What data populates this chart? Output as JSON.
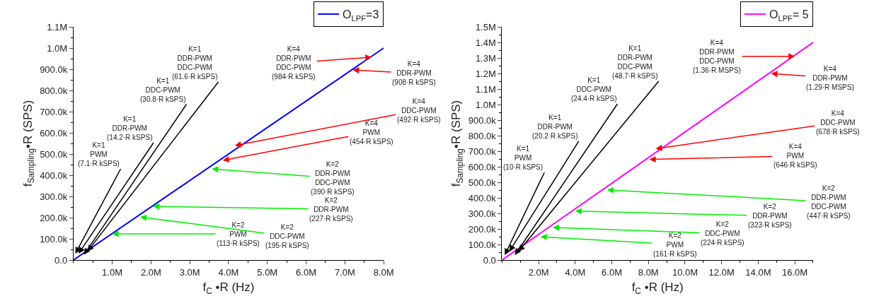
{
  "chart_data": [
    {
      "type": "line",
      "xlabel": "f$_{C}$ •R (Hz)",
      "ylabel": "f$_{Sampling}$•R (SPS)",
      "legend": "top right",
      "marker": "none",
      "line_style": "solid",
      "xlim": [
        0,
        8000000
      ],
      "xticks": [
        {
          "value": 1000000,
          "label": "1.0M"
        },
        {
          "value": 2000000,
          "label": "2.0M"
        },
        {
          "value": 3000000,
          "label": "3.0M"
        },
        {
          "value": 4000000,
          "label": "4.0M"
        },
        {
          "value": 5000000,
          "label": "5.0M"
        },
        {
          "value": 6000000,
          "label": "6.0M"
        },
        {
          "value": 7000000,
          "label": "7.0M"
        },
        {
          "value": 8000000,
          "label": "8.0M"
        }
      ],
      "ylim": [
        0,
        1100000
      ],
      "yticks": [
        {
          "value": 0,
          "label": "0.0"
        },
        {
          "value": 100000,
          "label": "100.0k"
        },
        {
          "value": 200000,
          "label": "200.0k"
        },
        {
          "value": 300000,
          "label": "300.0k"
        },
        {
          "value": 400000,
          "label": "400.0k"
        },
        {
          "value": 500000,
          "label": "500.0k"
        },
        {
          "value": 600000,
          "label": "600.0k"
        },
        {
          "value": 700000,
          "label": "700.0k"
        },
        {
          "value": 800000,
          "label": "800.0k"
        },
        {
          "value": 900000,
          "label": "900.0k"
        },
        {
          "value": 1000000,
          "label": "1.0M"
        },
        {
          "value": 1100000,
          "label": "1.1M"
        }
      ],
      "series": [
        {
          "name": "O$_{LPF}$=3",
          "color": "#0000ff",
          "x": [
            0,
            8000000
          ],
          "values": [
            0,
            1000000
          ]
        }
      ],
      "annotations": [
        {
          "text": "K=1\nPWM\n(7.1·R kSPS)",
          "x": 50000,
          "y": 30000
        },
        {
          "text": "K=1\nDDR-PWM\n(14.2·R kSPS)",
          "x": 130000,
          "y": 30000
        },
        {
          "text": "K=1\nDDC-PWM\n(30.8·R kSPS)",
          "x": 270000,
          "y": 25000
        },
        {
          "text": "K=1\nDDR-PWM\nDDC-PWM\n(61.6·R kSPS)",
          "x": 360000,
          "y": 40000
        },
        {
          "text": "K=2\nPWM\n(113·R kSPS)",
          "x": 1000000,
          "y": 123000
        },
        {
          "text": "K=2\nDDC-PWM\n(195·R kSPS)",
          "x": 1720000,
          "y": 203000
        },
        {
          "text": "K=2\nDDR-PWM\n(227·R kSPS)",
          "x": 2050000,
          "y": 253000
        },
        {
          "text": "K=2\nDDR-PWM\nDDC-PWM\n(390·R kSPS)",
          "x": 3570000,
          "y": 430000
        },
        {
          "text": "K=4\nPWM\n(454·R kSPS)",
          "x": 3850000,
          "y": 470000
        },
        {
          "text": "K=4\nDDC-PWM\n(492·R kSPS)",
          "x": 4160000,
          "y": 540000
        },
        {
          "text": "K=4\nDDR-PWM\n(908·R kSPS)",
          "x": 7200000,
          "y": 897000
        },
        {
          "text": "K=4\nDDR-PWM\nDDC-PWM\n(984·R kSPS)",
          "x": 7690000,
          "y": 957000
        }
      ]
    },
    {
      "type": "line",
      "xlabel": "f$_{C}$ •R (Hz)",
      "ylabel": "f$_{Sampling}$•R (SPS)",
      "legend": "top right",
      "marker": "none",
      "line_style": "solid",
      "xlim": [
        0,
        17000000
      ],
      "xticks": [
        {
          "value": 2000000,
          "label": "2.0M"
        },
        {
          "value": 4000000,
          "label": "4.0M"
        },
        {
          "value": 6000000,
          "label": "6.0M"
        },
        {
          "value": 8000000,
          "label": "8.0M"
        },
        {
          "value": 10000000,
          "label": "10.0M"
        },
        {
          "value": 12000000,
          "label": "12.0M"
        },
        {
          "value": 14000000,
          "label": "14.0M"
        },
        {
          "value": 16000000,
          "label": "16.0M"
        }
      ],
      "ylim": [
        0,
        1500000
      ],
      "yticks": [
        {
          "value": 0,
          "label": "0.0"
        },
        {
          "value": 100000,
          "label": "100.0k"
        },
        {
          "value": 200000,
          "label": "200.0k"
        },
        {
          "value": 300000,
          "label": "300.0k"
        },
        {
          "value": 400000,
          "label": "400.0k"
        },
        {
          "value": 500000,
          "label": "500.0k"
        },
        {
          "value": 600000,
          "label": "600.0k"
        },
        {
          "value": 700000,
          "label": "700.0k"
        },
        {
          "value": 800000,
          "label": "800.0k"
        },
        {
          "value": 900000,
          "label": "900.0k"
        },
        {
          "value": 1000000,
          "label": "1.0M"
        },
        {
          "value": 1100000,
          "label": "1.1M"
        },
        {
          "value": 1200000,
          "label": "1.2M"
        },
        {
          "value": 1300000,
          "label": "1.3M"
        },
        {
          "value": 1400000,
          "label": "1.4M"
        },
        {
          "value": 1500000,
          "label": "1.5M"
        }
      ],
      "series": [
        {
          "name": "O$_{LPF}$= 5",
          "color": "#ff00ff",
          "x": [
            0,
            17000000
          ],
          "values": [
            0,
            1400000
          ]
        }
      ],
      "annotations": [
        {
          "text": "K=1\nPWM\n(10·R kSPS)",
          "x": 150000,
          "y": 32000
        },
        {
          "text": "K=1\nDDR-PWM\n(20.2·R kSPS)",
          "x": 400000,
          "y": 55000
        },
        {
          "text": "K=1\nDDC-PWM\n(24.4·R kSPS)",
          "x": 700000,
          "y": 32000
        },
        {
          "text": "K=1\nDDR-PWM\nDDC-PWM\n(48.7·R kSPS)",
          "x": 900000,
          "y": 55000
        },
        {
          "text": "K=2\nPWM\n(161·R kSPS)",
          "x": 2100000,
          "y": 150000
        },
        {
          "text": "K=2\nDDC-PWM\n(224·R kSPS)",
          "x": 2770000,
          "y": 210000
        },
        {
          "text": "K=2\nDDR-PWM\n(323·R kSPS)",
          "x": 4000000,
          "y": 315000
        },
        {
          "text": "K=2\nDDR-PWM\nDDC-PWM\n(447·R kSPS)",
          "x": 5740000,
          "y": 451000
        },
        {
          "text": "K=4\nPWM\n(646·R kSPS)",
          "x": 8050000,
          "y": 647000
        },
        {
          "text": "K=4\nDDC-PWM\n(678·R kSPS)",
          "x": 8400000,
          "y": 716000
        },
        {
          "text": "K=4\nDDR-PWM\n(1.29·R MSPS)",
          "x": 14700000,
          "y": 1200000
        },
        {
          "text": "K=4\nDDR-PWM\nDDC-PWM\n(1.36·R MSPS)",
          "x": 16000000,
          "y": 1310000
        }
      ]
    }
  ]
}
